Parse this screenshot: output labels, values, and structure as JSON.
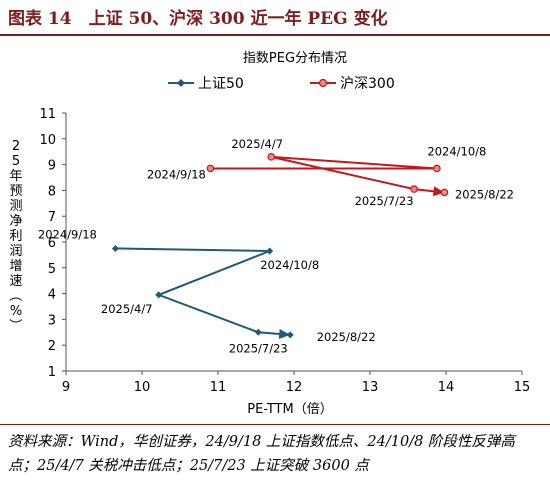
{
  "figure": {
    "title": "图表 14　上证 50、沪深 300 近一年 PEG 变化",
    "source_note": "资料来源：Wind，华创证券，24/9/18 上证指数低点、24/10/8 阶段性反弹高点；25/4/7 关税冲击低点；25/7/23 上证突破 3600 点"
  },
  "chart_data": {
    "type": "line",
    "title": "指数PEG分布情况",
    "xlabel": "PE-TTM（倍）",
    "ylabel": "25年预测净利润增速（%）",
    "xlim": [
      9,
      15
    ],
    "ylim": [
      1,
      11
    ],
    "xticks": [
      "9",
      "10",
      "11",
      "12",
      "13",
      "14",
      "15"
    ],
    "yticks": [
      "1",
      "2",
      "3",
      "4",
      "5",
      "6",
      "7",
      "8",
      "9",
      "10",
      "11"
    ],
    "grid": false,
    "legend_position": "top",
    "series": [
      {
        "name": "上证50",
        "color": "#1f5a78",
        "marker": "diamond",
        "points": [
          {
            "x": 9.65,
            "y": 5.75,
            "label": "2024/9/18"
          },
          {
            "x": 11.68,
            "y": 5.65,
            "label": "2024/10/8"
          },
          {
            "x": 10.22,
            "y": 3.95,
            "label": "2025/4/7"
          },
          {
            "x": 11.53,
            "y": 2.5,
            "label": "2025/7/23"
          },
          {
            "x": 11.95,
            "y": 2.4,
            "label": "2025/8/22"
          }
        ]
      },
      {
        "name": "沪深300",
        "color": "#c0191f",
        "marker": "circle",
        "points": [
          {
            "x": 10.9,
            "y": 8.85,
            "label": "2024/9/18"
          },
          {
            "x": 13.88,
            "y": 8.85,
            "label": "2024/10/8"
          },
          {
            "x": 11.7,
            "y": 9.3,
            "label": "2025/4/7"
          },
          {
            "x": 13.58,
            "y": 8.05,
            "label": "2025/7/23"
          },
          {
            "x": 13.98,
            "y": 7.92,
            "label": "2025/8/22"
          }
        ]
      }
    ]
  }
}
